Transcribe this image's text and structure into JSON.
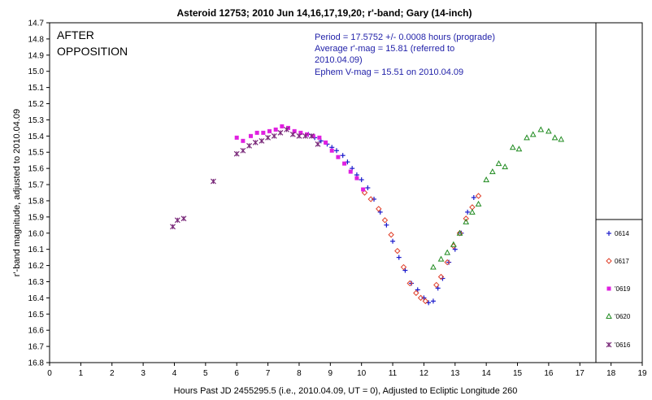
{
  "chart_data": {
    "type": "scatter",
    "title": "Asteroid 12753; 2010 Jun 14,16,17,19,20; r'-band; Gary (14-inch)",
    "xlabel": "Hours Past JD 2455295.5 (i.e., 2010.04.09, UT = 0), Adjusted to Ecliptic Longitude 260",
    "ylabel": "r'-band magnitude, adjusted to 2010.04.09",
    "xlim": [
      0,
      19
    ],
    "ylim": [
      14.7,
      16.8
    ],
    "y_inverted": true,
    "grid": false,
    "legend_position": "right",
    "x_ticks": [
      "0",
      "1",
      "2",
      "3",
      "4",
      "5",
      "6",
      "7",
      "8",
      "9",
      "10",
      "11",
      "12",
      "13",
      "14",
      "15",
      "16",
      "17",
      "18",
      "19"
    ],
    "y_ticks": [
      "14.7",
      "14.8",
      "14.9",
      "15.0",
      "15.1",
      "15.2",
      "15.3",
      "15.4",
      "15.5",
      "15.6",
      "15.7",
      "15.8",
      "15.9",
      "16.0",
      "16.1",
      "16.2",
      "16.3",
      "16.4",
      "16.5",
      "16.6",
      "16.7",
      "16.8"
    ],
    "corner_label": [
      "AFTER",
      "OPPOSITION"
    ],
    "info_lines": [
      "Period = 17.5752 +/- 0.0008 hours (prograde)",
      "Average r'-mag = 15.81 (referred to",
      "2010.04.09)",
      "Ephem V-mag = 15.51 on 2010.04.09"
    ],
    "series": [
      {
        "name": "0614",
        "marker": "plus",
        "color": "#1a1acc",
        "x": [
          8.3,
          8.5,
          8.7,
          8.9,
          9.05,
          9.2,
          9.4,
          9.55,
          9.7,
          9.85,
          10.0,
          10.2,
          10.4,
          10.6,
          10.8,
          11.0,
          11.2,
          11.4,
          11.6,
          11.8,
          12.0,
          12.15,
          12.3,
          12.45,
          12.6,
          12.8,
          13.0,
          13.2,
          13.4,
          13.6
        ],
        "y": [
          15.39,
          15.41,
          15.43,
          15.45,
          15.47,
          15.49,
          15.52,
          15.56,
          15.6,
          15.64,
          15.67,
          15.72,
          15.79,
          15.87,
          15.95,
          16.05,
          16.15,
          16.23,
          16.31,
          16.35,
          16.4,
          16.43,
          16.42,
          16.34,
          16.28,
          16.18,
          16.1,
          16.0,
          15.87,
          15.78
        ]
      },
      {
        "name": "0617",
        "marker": "diamond",
        "color": "#e0402a",
        "x": [
          10.1,
          10.3,
          10.55,
          10.75,
          10.95,
          11.15,
          11.35,
          11.55,
          11.75,
          11.9,
          12.05,
          12.4,
          12.55,
          12.75,
          12.95,
          13.15,
          13.35,
          13.55,
          13.75
        ],
        "y": [
          15.75,
          15.79,
          15.85,
          15.92,
          16.01,
          16.11,
          16.21,
          16.31,
          16.37,
          16.4,
          16.42,
          16.32,
          16.27,
          16.18,
          16.08,
          16.0,
          15.91,
          15.84,
          15.77
        ]
      },
      {
        "name": "'0619",
        "marker": "square",
        "color": "#e020e0",
        "x": [
          6.0,
          6.2,
          6.45,
          6.65,
          6.85,
          7.05,
          7.25,
          7.45,
          7.65,
          7.85,
          8.05,
          8.25,
          8.45,
          8.65,
          8.85,
          9.05,
          9.25,
          9.45,
          9.65,
          9.85,
          10.05
        ],
        "y": [
          15.41,
          15.43,
          15.4,
          15.38,
          15.38,
          15.37,
          15.36,
          15.34,
          15.35,
          15.37,
          15.38,
          15.39,
          15.4,
          15.41,
          15.44,
          15.49,
          15.53,
          15.57,
          15.62,
          15.66,
          15.73
        ]
      },
      {
        "name": "'0620",
        "marker": "triangle",
        "color": "#1f8a1f",
        "x": [
          12.3,
          12.55,
          12.75,
          12.95,
          13.15,
          13.35,
          13.55,
          13.75,
          14.0,
          14.2,
          14.4,
          14.6,
          14.85,
          15.05,
          15.3,
          15.5,
          15.75,
          16.0,
          16.2,
          16.4
        ],
        "y": [
          16.21,
          16.16,
          16.12,
          16.07,
          16.0,
          15.93,
          15.87,
          15.82,
          15.67,
          15.62,
          15.57,
          15.59,
          15.47,
          15.48,
          15.41,
          15.39,
          15.36,
          15.37,
          15.41,
          15.42
        ]
      },
      {
        "name": "'0616",
        "marker": "star",
        "color": "#7a2a7a",
        "x": [
          3.95,
          4.1,
          4.3,
          5.25,
          6.0,
          6.2,
          6.4,
          6.6,
          6.8,
          7.0,
          7.2,
          7.4,
          7.6,
          7.8,
          8.0,
          8.2,
          8.4,
          8.6
        ],
        "y": [
          15.96,
          15.92,
          15.91,
          15.68,
          15.51,
          15.49,
          15.46,
          15.44,
          15.43,
          15.41,
          15.4,
          15.38,
          15.36,
          15.39,
          15.4,
          15.4,
          15.4,
          15.45
        ]
      }
    ]
  }
}
